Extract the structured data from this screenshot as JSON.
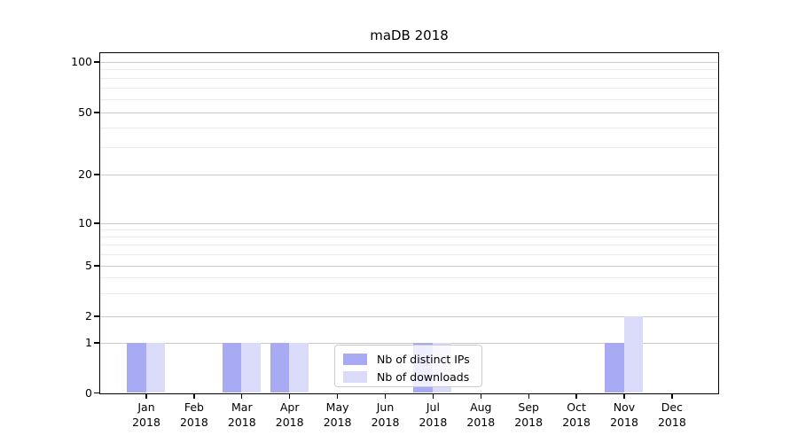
{
  "title": "maDB 2018",
  "chart_data": {
    "type": "bar",
    "title": "maDB 2018",
    "categories": [
      "Jan",
      "Feb",
      "Mar",
      "Apr",
      "May",
      "Jun",
      "Jul",
      "Aug",
      "Sep",
      "Oct",
      "Nov",
      "Dec"
    ],
    "year": "2018",
    "series": [
      {
        "name": "Nb of distinct IPs",
        "color": "#a9aaf4",
        "values": [
          1,
          0,
          1,
          1,
          0,
          0,
          1,
          0,
          0,
          0,
          1,
          0
        ]
      },
      {
        "name": "Nb of downloads",
        "color": "#d9dbf8",
        "values": [
          1,
          0,
          1,
          1,
          0,
          0,
          1,
          0,
          0,
          0,
          2,
          0
        ]
      }
    ],
    "xlabel": "",
    "ylabel": "",
    "yscale": "symlog",
    "ylim": [
      0,
      113
    ],
    "yticks": [
      100,
      50,
      20,
      10,
      5,
      2,
      1,
      0
    ],
    "minor_yticks": [
      3,
      4,
      6,
      7,
      8,
      9,
      30,
      40,
      60,
      70,
      80,
      90
    ],
    "grid": "horizontal major + log minor gridlines",
    "legend_position": "lower center inside plot"
  },
  "legend": {
    "items": [
      {
        "label": "Nb of distinct IPs",
        "color": "#a9aaf4"
      },
      {
        "label": "Nb of downloads",
        "color": "#d9dbf8"
      }
    ]
  },
  "colors": {
    "distinct_ips": "#a9aaf4",
    "downloads": "#d9dbf8",
    "grid_major": "#c9c9c9",
    "grid_minor": "#ebebeb",
    "spine": "#000000"
  }
}
